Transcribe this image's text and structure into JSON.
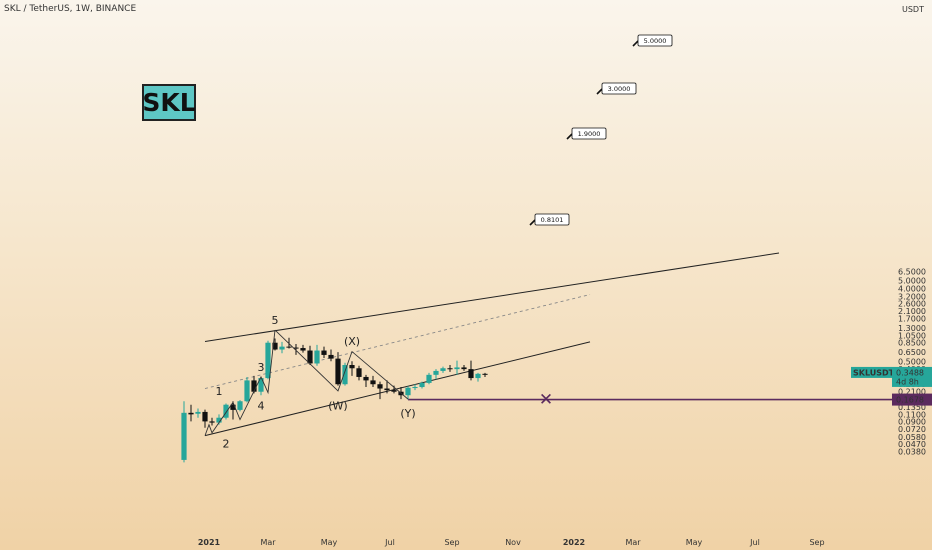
{
  "header": {
    "symbol_line": "SKL / TetherUS, 1W, BINANCE",
    "logo_text": "SKL"
  },
  "price_axis": {
    "currency_label": "USDT",
    "ticks": [
      "6.5000",
      "5.0000",
      "4.0000",
      "3.2000",
      "2.6000",
      "2.1000",
      "1.7000",
      "1.3000",
      "1.0500",
      "0.8500",
      "0.6500",
      "0.5000",
      "0.4000",
      "0.3200",
      "0.2600",
      "0.2100",
      "0.1700",
      "0.1350",
      "0.1100",
      "0.0900",
      "0.0720",
      "0.0580",
      "0.0470",
      "0.0380"
    ],
    "last_price_tag": {
      "symbol": "SKLUSDT",
      "price": "0.3488",
      "countdown": "4d 8h",
      "color": "#26a69a"
    },
    "support_tag": {
      "price": "0.1678",
      "color": "#5b2a5e"
    }
  },
  "time_axis": {
    "ticks": [
      "2021",
      "Mar",
      "May",
      "Jul",
      "Sep",
      "Nov",
      "2022",
      "Mar",
      "May",
      "Jul",
      "Sep"
    ]
  },
  "annotations": {
    "waves": [
      "1",
      "2",
      "3",
      "4",
      "5",
      "(X)",
      "(W)",
      "(Y)"
    ],
    "targets": [
      "5.0000",
      "3.0000",
      "1.9000",
      "0.8101"
    ],
    "invalidation_mark": "✕"
  },
  "colors": {
    "bull": "#26a69a",
    "bear": "#111111",
    "support": "#5b2a5e",
    "channel": "#222222"
  },
  "chart_data": {
    "type": "candlestick",
    "title": "SKL / TetherUS, 1W, BINANCE",
    "timeframe": "1W",
    "y_scale": "log",
    "ylim": [
      0.034,
      10.0
    ],
    "x_ticks": [
      "2021",
      "Mar",
      "May",
      "Jul",
      "Sep",
      "Nov",
      "2022",
      "Mar",
      "May",
      "Jul",
      "Sep"
    ],
    "candles": [
      {
        "date": "2020-12-07",
        "open": 0.03,
        "high": 0.16,
        "low": 0.028,
        "close": 0.115
      },
      {
        "date": "2020-12-14",
        "open": 0.115,
        "high": 0.145,
        "low": 0.09,
        "close": 0.11
      },
      {
        "date": "2020-12-21",
        "open": 0.112,
        "high": 0.13,
        "low": 0.1,
        "close": 0.118
      },
      {
        "date": "2020-12-28",
        "open": 0.118,
        "high": 0.126,
        "low": 0.075,
        "close": 0.09
      },
      {
        "date": "2021-01-04",
        "open": 0.09,
        "high": 0.1,
        "low": 0.08,
        "close": 0.087
      },
      {
        "date": "2021-01-11",
        "open": 0.087,
        "high": 0.11,
        "low": 0.082,
        "close": 0.1
      },
      {
        "date": "2021-01-18",
        "open": 0.1,
        "high": 0.15,
        "low": 0.095,
        "close": 0.145
      },
      {
        "date": "2021-01-25",
        "open": 0.145,
        "high": 0.16,
        "low": 0.095,
        "close": 0.125
      },
      {
        "date": "2021-02-01",
        "open": 0.125,
        "high": 0.165,
        "low": 0.12,
        "close": 0.16
      },
      {
        "date": "2021-02-08",
        "open": 0.16,
        "high": 0.32,
        "low": 0.155,
        "close": 0.29
      },
      {
        "date": "2021-02-15",
        "open": 0.29,
        "high": 0.33,
        "low": 0.2,
        "close": 0.21
      },
      {
        "date": "2021-02-22",
        "open": 0.21,
        "high": 0.32,
        "low": 0.19,
        "close": 0.31
      },
      {
        "date": "2021-03-01",
        "open": 0.31,
        "high": 0.9,
        "low": 0.3,
        "close": 0.85
      },
      {
        "date": "2021-03-08",
        "open": 0.85,
        "high": 0.96,
        "low": 0.68,
        "close": 0.7
      },
      {
        "date": "2021-03-15",
        "open": 0.7,
        "high": 0.87,
        "low": 0.63,
        "close": 0.76
      },
      {
        "date": "2021-03-22",
        "open": 0.76,
        "high": 0.98,
        "low": 0.72,
        "close": 0.74
      },
      {
        "date": "2021-03-29",
        "open": 0.74,
        "high": 0.82,
        "low": 0.6,
        "close": 0.73
      },
      {
        "date": "2021-04-05",
        "open": 0.73,
        "high": 0.8,
        "low": 0.64,
        "close": 0.68
      },
      {
        "date": "2021-04-12",
        "open": 0.68,
        "high": 0.78,
        "low": 0.45,
        "close": 0.47
      },
      {
        "date": "2021-04-19",
        "open": 0.47,
        "high": 0.8,
        "low": 0.44,
        "close": 0.68
      },
      {
        "date": "2021-04-26",
        "open": 0.68,
        "high": 0.76,
        "low": 0.55,
        "close": 0.6
      },
      {
        "date": "2021-05-03",
        "open": 0.6,
        "high": 0.7,
        "low": 0.5,
        "close": 0.54
      },
      {
        "date": "2021-05-10",
        "open": 0.54,
        "high": 0.65,
        "low": 0.25,
        "close": 0.26
      },
      {
        "date": "2021-05-17",
        "open": 0.26,
        "high": 0.48,
        "low": 0.25,
        "close": 0.45
      },
      {
        "date": "2021-05-24",
        "open": 0.45,
        "high": 0.5,
        "low": 0.33,
        "close": 0.41
      },
      {
        "date": "2021-05-31",
        "open": 0.41,
        "high": 0.44,
        "low": 0.29,
        "close": 0.32
      },
      {
        "date": "2021-06-07",
        "open": 0.32,
        "high": 0.34,
        "low": 0.24,
        "close": 0.29
      },
      {
        "date": "2021-06-14",
        "open": 0.29,
        "high": 0.33,
        "low": 0.24,
        "close": 0.26
      },
      {
        "date": "2021-06-21",
        "open": 0.26,
        "high": 0.28,
        "low": 0.17,
        "close": 0.23
      },
      {
        "date": "2021-06-28",
        "open": 0.23,
        "high": 0.29,
        "low": 0.2,
        "close": 0.22
      },
      {
        "date": "2021-07-05",
        "open": 0.22,
        "high": 0.25,
        "low": 0.2,
        "close": 0.21
      },
      {
        "date": "2021-07-12",
        "open": 0.21,
        "high": 0.24,
        "low": 0.17,
        "close": 0.19
      },
      {
        "date": "2021-07-19",
        "open": 0.19,
        "high": 0.245,
        "low": 0.168,
        "close": 0.235
      },
      {
        "date": "2021-07-26",
        "open": 0.235,
        "high": 0.26,
        "low": 0.22,
        "close": 0.24
      },
      {
        "date": "2021-08-02",
        "open": 0.24,
        "high": 0.28,
        "low": 0.23,
        "close": 0.27
      },
      {
        "date": "2021-08-09",
        "open": 0.27,
        "high": 0.36,
        "low": 0.26,
        "close": 0.34
      },
      {
        "date": "2021-08-16",
        "open": 0.34,
        "high": 0.4,
        "low": 0.3,
        "close": 0.38
      },
      {
        "date": "2021-08-23",
        "open": 0.38,
        "high": 0.43,
        "low": 0.36,
        "close": 0.41
      },
      {
        "date": "2021-08-30",
        "open": 0.41,
        "high": 0.45,
        "low": 0.37,
        "close": 0.4
      },
      {
        "date": "2021-09-06",
        "open": 0.4,
        "high": 0.51,
        "low": 0.34,
        "close": 0.42
      },
      {
        "date": "2021-09-13",
        "open": 0.42,
        "high": 0.45,
        "low": 0.38,
        "close": 0.4
      },
      {
        "date": "2021-09-20",
        "open": 0.4,
        "high": 0.51,
        "low": 0.29,
        "close": 0.31
      },
      {
        "date": "2021-09-27",
        "open": 0.31,
        "high": 0.36,
        "low": 0.28,
        "close": 0.35
      },
      {
        "date": "2021-10-04",
        "open": 0.35,
        "high": 0.36,
        "low": 0.32,
        "close": 0.349
      }
    ],
    "lines": [
      {
        "name": "resistance-line",
        "from": {
          "date": "2020-12-28",
          "price": 0.88
        },
        "to": {
          "date": "2022-07-25",
          "price": 11.0
        }
      },
      {
        "name": "support-line",
        "from": {
          "date": "2020-12-28",
          "price": 0.06
        },
        "to": {
          "date": "2022-01-17",
          "price": 0.87
        }
      },
      {
        "name": "midline-dashed",
        "from": {
          "date": "2020-12-28",
          "price": 0.23
        },
        "to": {
          "date": "2022-01-17",
          "price": 3.36
        }
      },
      {
        "name": "horizontal-support",
        "price": 0.1678
      }
    ],
    "targets": [
      0.8101,
      1.9,
      3.0,
      5.0
    ],
    "last_price": 0.3488
  }
}
